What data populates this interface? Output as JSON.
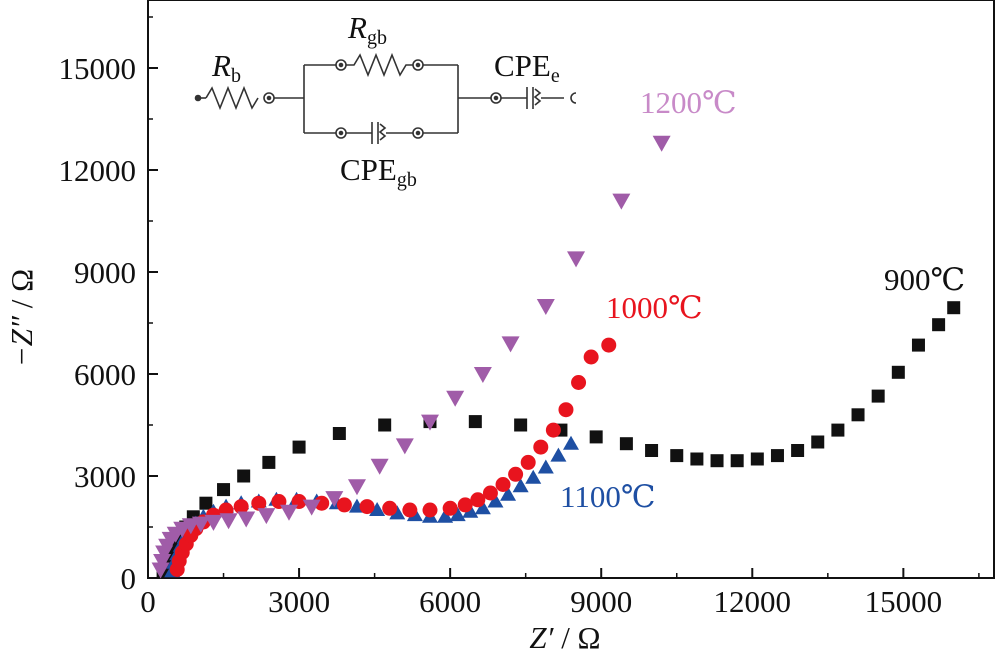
{
  "chart_data": {
    "type": "scatter",
    "xlabel": {
      "prefix": "Z′",
      "unit": " / Ω"
    },
    "ylabel": {
      "prefix": "−Z″",
      "unit": " / Ω"
    },
    "xlim": [
      0,
      16800
    ],
    "ylim": [
      0,
      17000
    ],
    "x_ticks": [
      0,
      3000,
      6000,
      9000,
      12000,
      15000
    ],
    "x_tick_labels": [
      "0",
      "3000",
      "6000",
      "9000",
      "12000",
      "15000"
    ],
    "y_ticks": [
      0,
      3000,
      6000,
      9000,
      12000,
      15000
    ],
    "y_tick_labels": [
      "0",
      "3000",
      "6000",
      "9000",
      "12000",
      "15000"
    ],
    "grid": false,
    "series": [
      {
        "name": "900℃",
        "color": "#111111",
        "marker": "square",
        "x": [
          300,
          350,
          420,
          500,
          600,
          750,
          900,
          1150,
          1500,
          1900,
          2400,
          3000,
          3800,
          4700,
          5600,
          6500,
          7400,
          8200,
          8900,
          9500,
          10000,
          10500,
          10900,
          11300,
          11700,
          12100,
          12500,
          12900,
          13300,
          13700,
          14100,
          14500,
          14900,
          15300,
          15700,
          16000
        ],
        "y": [
          200,
          450,
          700,
          950,
          1200,
          1500,
          1800,
          2200,
          2600,
          3000,
          3400,
          3850,
          4250,
          4500,
          4600,
          4600,
          4500,
          4350,
          4150,
          3950,
          3750,
          3600,
          3500,
          3450,
          3450,
          3500,
          3600,
          3750,
          4000,
          4350,
          4800,
          5350,
          6050,
          6850,
          7450,
          7950
        ]
      },
      {
        "name": "1000℃",
        "color": "#e8141e",
        "marker": "circle",
        "x": [
          580,
          620,
          680,
          760,
          850,
          950,
          1100,
          1300,
          1550,
          1850,
          2200,
          2600,
          3000,
          3450,
          3900,
          4350,
          4800,
          5200,
          5600,
          6000,
          6300,
          6550,
          6800,
          7050,
          7300,
          7550,
          7800,
          8050,
          8300,
          8550,
          8800,
          9150
        ],
        "y": [
          250,
          500,
          750,
          1000,
          1250,
          1450,
          1650,
          1850,
          2000,
          2100,
          2200,
          2250,
          2250,
          2200,
          2150,
          2100,
          2050,
          2000,
          2000,
          2050,
          2150,
          2300,
          2500,
          2750,
          3050,
          3400,
          3850,
          4350,
          4950,
          5750,
          6500,
          6850
        ]
      },
      {
        "name": "1100℃",
        "color": "#1e4fa3",
        "marker": "triangle-up",
        "x": [
          480,
          520,
          580,
          650,
          730,
          830,
          950,
          1100,
          1300,
          1550,
          1850,
          2200,
          2550,
          2950,
          3350,
          3750,
          4150,
          4550,
          4950,
          5300,
          5600,
          5900,
          6150,
          6400,
          6650,
          6900,
          7150,
          7400,
          7650,
          7900,
          8150,
          8400
        ],
        "y": [
          200,
          450,
          700,
          950,
          1200,
          1400,
          1600,
          1800,
          1950,
          2100,
          2200,
          2250,
          2300,
          2300,
          2250,
          2200,
          2100,
          2000,
          1900,
          1850,
          1800,
          1800,
          1850,
          1950,
          2050,
          2250,
          2450,
          2700,
          2950,
          3250,
          3600,
          3950
        ]
      },
      {
        "name": "1200℃",
        "color": "#a05ca8",
        "marker": "triangle-down",
        "x": [
          250,
          280,
          320,
          380,
          450,
          550,
          680,
          850,
          1050,
          1300,
          1600,
          1950,
          2350,
          2800,
          3250,
          3700,
          4150,
          4600,
          5100,
          5600,
          6100,
          6650,
          7200,
          7900,
          8500,
          9400,
          10200
        ],
        "y": [
          250,
          500,
          750,
          950,
          1150,
          1300,
          1450,
          1550,
          1600,
          1650,
          1700,
          1750,
          1850,
          1950,
          2100,
          2350,
          2700,
          3300,
          3900,
          4600,
          5300,
          6000,
          6900,
          8000,
          9400,
          11100,
          12800
        ]
      }
    ],
    "series_label_text": [
      "900℃",
      "1000℃",
      "1100℃",
      "1200℃"
    ],
    "inset_circuit": {
      "Rb": {
        "main": "R",
        "sub": "b"
      },
      "Rgb": {
        "main": "R",
        "sub": "gb"
      },
      "CPEgb": {
        "main": "CPE",
        "sub": "gb"
      },
      "CPEe": {
        "main": "CPE",
        "sub": "e"
      }
    }
  }
}
